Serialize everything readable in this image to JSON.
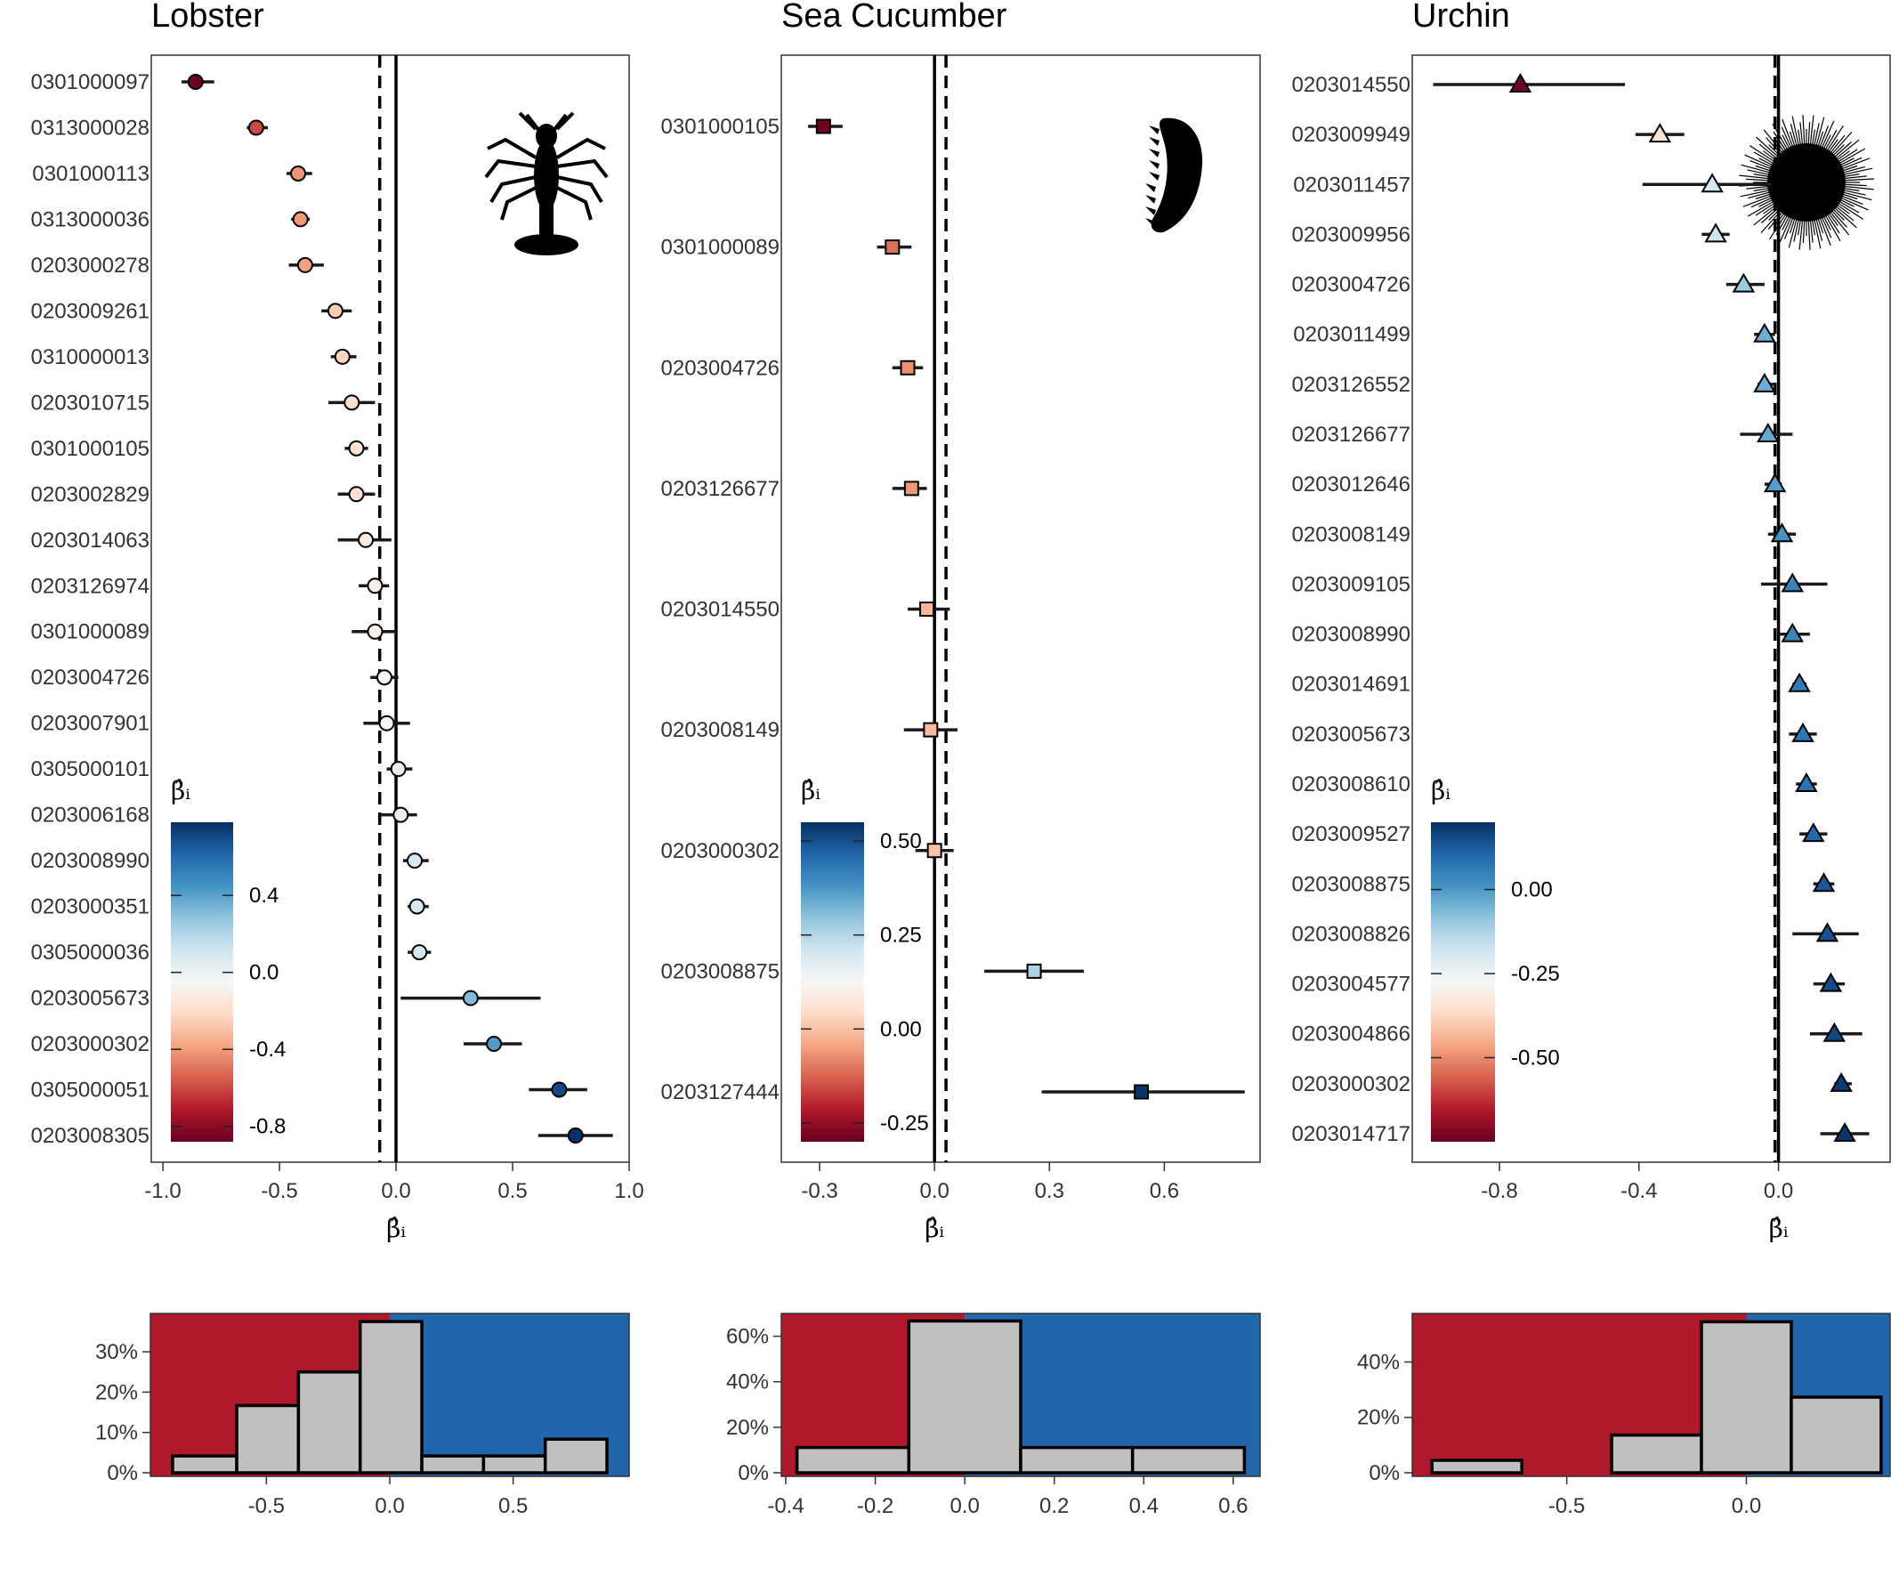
{
  "axis_symbol": "β̂ᵢ",
  "legend_title": "β̂ᵢ",
  "colors": {
    "negative_bg": "#b2182b",
    "positive_bg": "#2166ac",
    "hist_bar": "#c0c0c0",
    "ramp": [
      "#67001f",
      "#b2182b",
      "#d6604d",
      "#f4a582",
      "#fddbc7",
      "#f7f7f7",
      "#d1e5f0",
      "#92c5de",
      "#4393c3",
      "#2166ac",
      "#053061"
    ]
  },
  "chart_data": [
    {
      "type": "scatter",
      "title": "Lobster",
      "marker": "circle",
      "silhouette": "lobster-icon",
      "xlabel": "β̂ᵢ",
      "xlim": [
        -1.05,
        1.0
      ],
      "xticks": [
        -1.0,
        -0.5,
        0.0,
        0.5,
        1.0
      ],
      "xtick_labels": [
        "-1.0",
        "-0.5",
        "0.0",
        "0.5",
        "1.0"
      ],
      "dashed_line": -0.07,
      "legend_ticks": [
        0.4,
        0.0,
        -0.4,
        -0.8
      ],
      "legend_tick_labels": [
        "0.4",
        "0.0",
        "-0.4",
        "-0.8"
      ],
      "color_range": [
        -0.88,
        0.78
      ],
      "points": [
        {
          "label": "0301000097",
          "est": -0.86,
          "lo": -0.92,
          "hi": -0.78
        },
        {
          "label": "0313000028",
          "est": -0.6,
          "lo": -0.64,
          "hi": -0.55
        },
        {
          "label": "0301000113",
          "est": -0.42,
          "lo": -0.47,
          "hi": -0.36
        },
        {
          "label": "0313000036",
          "est": -0.41,
          "lo": -0.45,
          "hi": -0.37
        },
        {
          "label": "0203000278",
          "est": -0.39,
          "lo": -0.46,
          "hi": -0.31
        },
        {
          "label": "0203009261",
          "est": -0.26,
          "lo": -0.32,
          "hi": -0.19
        },
        {
          "label": "0310000013",
          "est": -0.23,
          "lo": -0.28,
          "hi": -0.17
        },
        {
          "label": "0203010715",
          "est": -0.19,
          "lo": -0.29,
          "hi": -0.09
        },
        {
          "label": "0301000105",
          "est": -0.17,
          "lo": -0.22,
          "hi": -0.12
        },
        {
          "label": "0203002829",
          "est": -0.17,
          "lo": -0.25,
          "hi": -0.09
        },
        {
          "label": "0203014063",
          "est": -0.13,
          "lo": -0.25,
          "hi": -0.02
        },
        {
          "label": "0203126974",
          "est": -0.09,
          "lo": -0.16,
          "hi": -0.03
        },
        {
          "label": "0301000089",
          "est": -0.09,
          "lo": -0.19,
          "hi": 0.0
        },
        {
          "label": "0203004726",
          "est": -0.05,
          "lo": -0.11,
          "hi": 0.01
        },
        {
          "label": "0203007901",
          "est": -0.04,
          "lo": -0.14,
          "hi": 0.06
        },
        {
          "label": "0305000101",
          "est": 0.01,
          "lo": -0.04,
          "hi": 0.07
        },
        {
          "label": "0203006168",
          "est": 0.02,
          "lo": -0.07,
          "hi": 0.09
        },
        {
          "label": "0203008990",
          "est": 0.08,
          "lo": 0.03,
          "hi": 0.14
        },
        {
          "label": "0203000351",
          "est": 0.09,
          "lo": 0.05,
          "hi": 0.14
        },
        {
          "label": "0305000036",
          "est": 0.1,
          "lo": 0.05,
          "hi": 0.15
        },
        {
          "label": "0203005673",
          "est": 0.32,
          "lo": 0.02,
          "hi": 0.62
        },
        {
          "label": "0203000302",
          "est": 0.42,
          "lo": 0.29,
          "hi": 0.54
        },
        {
          "label": "0305000051",
          "est": 0.7,
          "lo": 0.57,
          "hi": 0.82
        },
        {
          "label": "0203008305",
          "est": 0.77,
          "lo": 0.61,
          "hi": 0.93
        }
      ],
      "histogram": {
        "bins": [
          [
            -0.88,
            -0.62
          ],
          [
            -0.62,
            -0.37
          ],
          [
            -0.37,
            -0.12
          ],
          [
            -0.12,
            0.13
          ],
          [
            0.13,
            0.38
          ],
          [
            0.38,
            0.63
          ],
          [
            0.63,
            0.88
          ]
        ],
        "percent": [
          4.17,
          16.67,
          25.0,
          37.5,
          4.17,
          4.17,
          8.33
        ],
        "xlim": [
          -0.97,
          0.97
        ],
        "ylim": [
          0,
          39.5
        ],
        "xticks": [
          -0.5,
          0.0,
          0.5
        ],
        "xtick_labels": [
          "-0.5",
          "0.0",
          "0.5"
        ],
        "yticks": [
          0,
          10,
          20,
          30
        ],
        "ytick_labels": [
          "0%",
          "10%",
          "20%",
          "30%"
        ]
      }
    },
    {
      "type": "scatter",
      "title": "Sea Cucumber",
      "marker": "square",
      "silhouette": "sea-cucumber-icon",
      "xlabel": "β̂ᵢ",
      "xlim": [
        -0.4,
        0.85
      ],
      "xticks": [
        -0.3,
        0.0,
        0.3,
        0.6
      ],
      "xtick_labels": [
        "-0.3",
        "0.0",
        "0.3",
        "0.6"
      ],
      "dashed_line": 0.03,
      "legend_ticks": [
        0.5,
        0.25,
        0.0,
        -0.25
      ],
      "legend_tick_labels": [
        "0.50",
        "0.25",
        "0.00",
        "-0.25"
      ],
      "color_range": [
        -0.3,
        0.55
      ],
      "points": [
        {
          "label": "0301000105",
          "est": -0.29,
          "lo": -0.33,
          "hi": -0.24
        },
        {
          "label": "0301000089",
          "est": -0.11,
          "lo": -0.15,
          "hi": -0.06
        },
        {
          "label": "0203004726",
          "est": -0.07,
          "lo": -0.11,
          "hi": -0.03
        },
        {
          "label": "0203126677",
          "est": -0.06,
          "lo": -0.11,
          "hi": -0.02
        },
        {
          "label": "0203014550",
          "est": -0.02,
          "lo": -0.07,
          "hi": 0.04
        },
        {
          "label": "0203008149",
          "est": -0.01,
          "lo": -0.08,
          "hi": 0.06
        },
        {
          "label": "0203000302",
          "est": 0.0,
          "lo": -0.05,
          "hi": 0.05
        },
        {
          "label": "0203008875",
          "est": 0.26,
          "lo": 0.13,
          "hi": 0.39
        },
        {
          "label": "0203127444",
          "est": 0.54,
          "lo": 0.28,
          "hi": 0.81
        }
      ],
      "histogram": {
        "bins": [
          [
            -0.375,
            -0.125
          ],
          [
            -0.125,
            0.125
          ],
          [
            0.125,
            0.375
          ],
          [
            0.375,
            0.625
          ]
        ],
        "percent": [
          11.1,
          66.7,
          11.1,
          11.1
        ],
        "xlim": [
          -0.41,
          0.66
        ],
        "ylim": [
          0,
          70
        ],
        "xticks": [
          -0.4,
          -0.2,
          0.0,
          0.2,
          0.4,
          0.6
        ],
        "xtick_labels": [
          "-0.4",
          "-0.2",
          "0.0",
          "0.2",
          "0.4",
          "0.6"
        ],
        "yticks": [
          0,
          20,
          40,
          60
        ],
        "ytick_labels": [
          "0%",
          "20%",
          "40%",
          "60%"
        ]
      }
    },
    {
      "type": "scatter",
      "title": "Urchin",
      "marker": "triangle",
      "silhouette": "urchin-icon",
      "xlabel": "β̂ᵢ",
      "xlim": [
        -1.05,
        0.32
      ],
      "xticks": [
        -0.8,
        -0.4,
        0.0
      ],
      "xtick_labels": [
        "-0.8",
        "-0.4",
        "0.0"
      ],
      "dashed_line": -0.01,
      "legend_ticks": [
        0.0,
        -0.25,
        -0.5
      ],
      "legend_tick_labels": [
        "0.00",
        "-0.25",
        "-0.50"
      ],
      "color_range": [
        -0.75,
        0.2
      ],
      "points": [
        {
          "label": "0203014550",
          "est": -0.74,
          "lo": -0.99,
          "hi": -0.44
        },
        {
          "label": "0203009949",
          "est": -0.34,
          "lo": -0.41,
          "hi": -0.27
        },
        {
          "label": "0203011457",
          "est": -0.19,
          "lo": -0.39,
          "hi": -0.02
        },
        {
          "label": "0203009956",
          "est": -0.18,
          "lo": -0.22,
          "hi": -0.14
        },
        {
          "label": "0203004726",
          "est": -0.1,
          "lo": -0.15,
          "hi": -0.04
        },
        {
          "label": "0203011499",
          "est": -0.04,
          "lo": -0.07,
          "hi": -0.01
        },
        {
          "label": "0203126552",
          "est": -0.04,
          "lo": -0.06,
          "hi": -0.01
        },
        {
          "label": "0203126677",
          "est": -0.03,
          "lo": -0.11,
          "hi": 0.04
        },
        {
          "label": "0203012646",
          "est": -0.01,
          "lo": -0.04,
          "hi": 0.01
        },
        {
          "label": "0203008149",
          "est": 0.01,
          "lo": -0.03,
          "hi": 0.05
        },
        {
          "label": "0203009105",
          "est": 0.04,
          "lo": -0.05,
          "hi": 0.14
        },
        {
          "label": "0203008990",
          "est": 0.04,
          "lo": 0.0,
          "hi": 0.09
        },
        {
          "label": "0203014691",
          "est": 0.06,
          "lo": 0.04,
          "hi": 0.08
        },
        {
          "label": "0203005673",
          "est": 0.07,
          "lo": 0.03,
          "hi": 0.11
        },
        {
          "label": "0203008610",
          "est": 0.08,
          "lo": 0.05,
          "hi": 0.11
        },
        {
          "label": "0203009527",
          "est": 0.1,
          "lo": 0.06,
          "hi": 0.14
        },
        {
          "label": "0203008875",
          "est": 0.13,
          "lo": 0.1,
          "hi": 0.16
        },
        {
          "label": "0203008826",
          "est": 0.14,
          "lo": 0.04,
          "hi": 0.23
        },
        {
          "label": "0203004577",
          "est": 0.15,
          "lo": 0.1,
          "hi": 0.19
        },
        {
          "label": "0203004866",
          "est": 0.16,
          "lo": 0.09,
          "hi": 0.24
        },
        {
          "label": "0203000302",
          "est": 0.18,
          "lo": 0.16,
          "hi": 0.21
        },
        {
          "label": "0203014717",
          "est": 0.19,
          "lo": 0.12,
          "hi": 0.26
        }
      ],
      "histogram": {
        "bins": [
          [
            -0.875,
            -0.625
          ],
          [
            -0.625,
            -0.375
          ],
          [
            -0.375,
            -0.125
          ],
          [
            -0.125,
            0.125
          ],
          [
            0.125,
            0.375
          ]
        ],
        "percent": [
          4.5,
          0.0,
          13.6,
          54.5,
          27.3
        ],
        "xlim": [
          -0.93,
          0.4
        ],
        "ylim": [
          0,
          57.5
        ],
        "xticks": [
          -0.5,
          0.0
        ],
        "xtick_labels": [
          "-0.5",
          "0.0"
        ],
        "yticks": [
          0,
          20,
          40
        ],
        "ytick_labels": [
          "0%",
          "20%",
          "40%"
        ]
      }
    }
  ]
}
